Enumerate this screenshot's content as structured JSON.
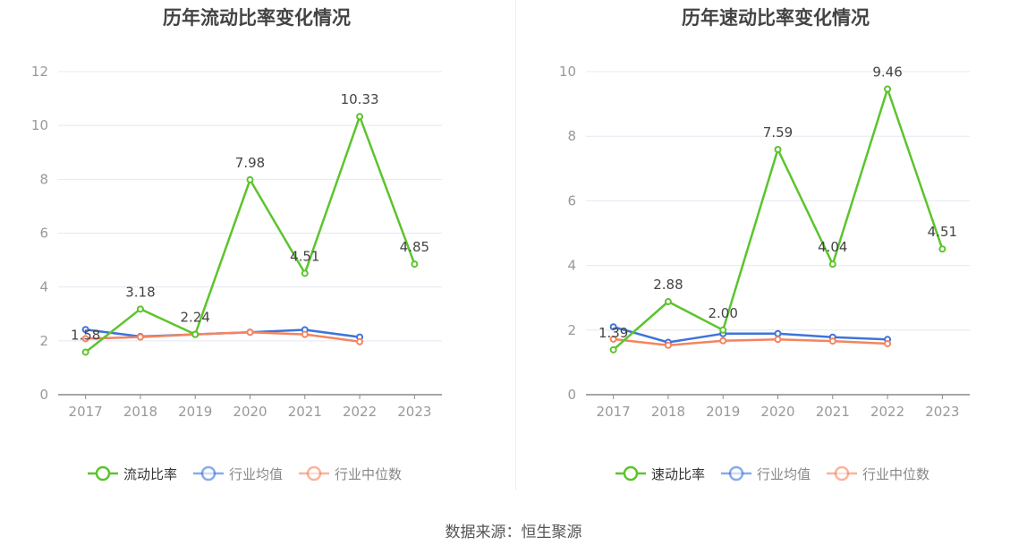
{
  "chart_data": [
    {
      "type": "line",
      "title": "历年流动比率变化情况",
      "categories": [
        "2017",
        "2018",
        "2019",
        "2020",
        "2021",
        "2022",
        "2023"
      ],
      "ylim": [
        0,
        12
      ],
      "yticks": [
        "0",
        "2",
        "4",
        "6",
        "8",
        "10",
        "12"
      ],
      "grid": true,
      "legend_position": "bottom",
      "series": [
        {
          "name": "流动比率",
          "color": "#5cc42d",
          "values": [
            1.58,
            3.18,
            2.24,
            7.98,
            4.51,
            10.33,
            4.85
          ],
          "labels": [
            "1.58",
            "3.18",
            "2.24",
            "7.98",
            "4.51",
            "10.33",
            "4.85"
          ]
        },
        {
          "name": "行业均值",
          "color": "#3d74db",
          "values": [
            2.42,
            2.16,
            2.24,
            2.32,
            2.41,
            2.14,
            null
          ]
        },
        {
          "name": "行业中位数",
          "color": "#f4845f",
          "values": [
            2.08,
            2.14,
            2.24,
            2.32,
            2.24,
            1.97,
            null
          ]
        }
      ]
    },
    {
      "type": "line",
      "title": "历年速动比率变化情况",
      "categories": [
        "2017",
        "2018",
        "2019",
        "2020",
        "2021",
        "2022",
        "2023"
      ],
      "ylim": [
        0,
        10
      ],
      "yticks": [
        "0",
        "2",
        "4",
        "6",
        "8",
        "10"
      ],
      "grid": true,
      "legend_position": "bottom",
      "series": [
        {
          "name": "速动比率",
          "color": "#5cc42d",
          "values": [
            1.39,
            2.88,
            2.0,
            7.59,
            4.04,
            9.46,
            4.51
          ],
          "labels": [
            "1.39",
            "2.88",
            "2.00",
            "7.59",
            "4.04",
            "9.46",
            "4.51"
          ]
        },
        {
          "name": "行业均值",
          "color": "#3d74db",
          "values": [
            2.1,
            1.62,
            1.89,
            1.89,
            1.78,
            1.71,
            null
          ]
        },
        {
          "name": "行业中位数",
          "color": "#f4845f",
          "values": [
            1.72,
            1.53,
            1.67,
            1.71,
            1.66,
            1.58,
            null
          ]
        }
      ]
    }
  ],
  "source_note": "数据来源：恒生聚源"
}
